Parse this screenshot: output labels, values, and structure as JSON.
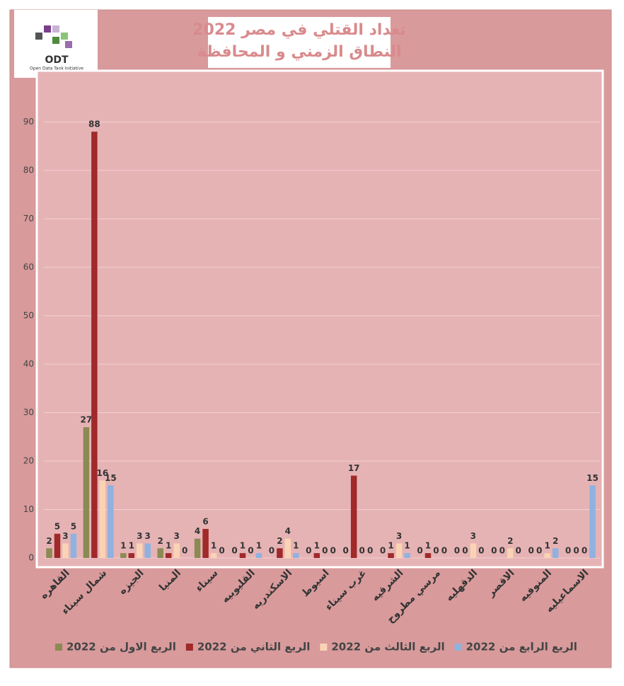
{
  "logo": {
    "title": "ODT",
    "subtitle": "Open Data Tank Initiative"
  },
  "chart_data": {
    "type": "bar",
    "title": "تعداد القتلي في مصر 2022",
    "subtitle": "النطاق الزمني و المحافظة",
    "categories": [
      "القاهره",
      "شمال سيناء",
      "الجيزه",
      "المنيا",
      "سيناء",
      "القليوبيه",
      "الاسكندريه",
      "اسيوط",
      "غرب سيناء",
      "الشرقيه",
      "مرسي مطروح",
      "الدقهليه",
      "الاقصر",
      "المنوفيه",
      "الاسماعيليه"
    ],
    "series": [
      {
        "name": "الربع الاول من 2022",
        "color": "#8b8a52",
        "values": [
          2,
          27,
          1,
          2,
          4,
          0,
          0,
          0,
          0,
          0,
          0,
          0,
          0,
          0,
          0
        ]
      },
      {
        "name": "الربع الثاني من 2022",
        "color": "#a0292a",
        "values": [
          5,
          88,
          1,
          1,
          6,
          1,
          2,
          1,
          17,
          1,
          1,
          0,
          0,
          0,
          0
        ]
      },
      {
        "name": "الربع الثالث من 2022",
        "color": "#fad3b4",
        "values": [
          3,
          16,
          3,
          3,
          1,
          0,
          4,
          0,
          0,
          3,
          0,
          3,
          2,
          1,
          0
        ]
      },
      {
        "name": "الربع الرابع من 2022",
        "color": "#8fb2e0",
        "values": [
          5,
          15,
          3,
          0,
          0,
          1,
          1,
          0,
          0,
          1,
          0,
          0,
          0,
          2,
          15
        ]
      }
    ],
    "ylim": [
      0,
      100
    ],
    "yticks": [
      0,
      10,
      20,
      30,
      40,
      50,
      60,
      70,
      80,
      90
    ],
    "grid": true,
    "legend": "bottom"
  }
}
